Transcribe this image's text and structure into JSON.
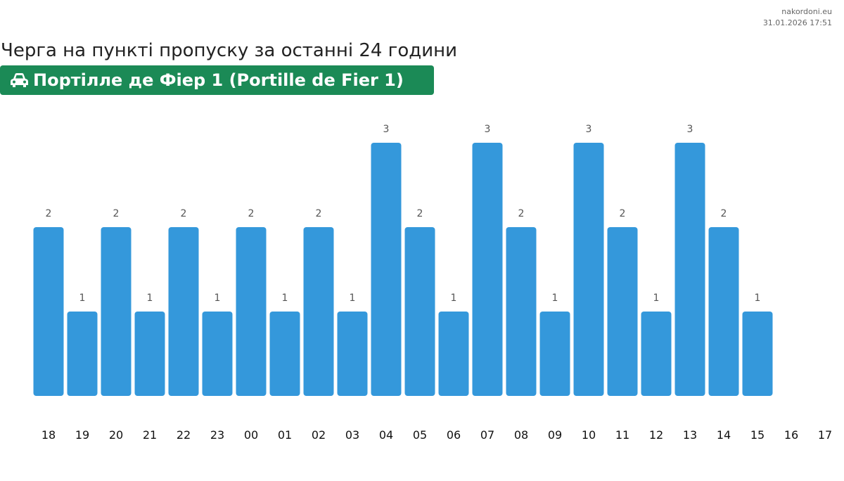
{
  "header": {
    "site": "nakordoni.eu",
    "timestamp": "31.01.2026 17:51",
    "title": "Черга на пункті пропуску за останні 24 години"
  },
  "badge": {
    "label": "Портілле де Фіер 1 (Portille de Fier 1)",
    "icon": "car-icon",
    "color": "#1b8a56"
  },
  "chart_data": {
    "type": "bar",
    "title": "Черга на пункті пропуску за останні 24 години",
    "xlabel": "",
    "ylabel": "",
    "categories": [
      "18",
      "19",
      "20",
      "21",
      "22",
      "23",
      "00",
      "01",
      "02",
      "03",
      "04",
      "05",
      "06",
      "07",
      "08",
      "09",
      "10",
      "11",
      "12",
      "13",
      "14",
      "15",
      "16",
      "17"
    ],
    "values": [
      2,
      1,
      2,
      1,
      2,
      1,
      2,
      1,
      2,
      1,
      3,
      2,
      1,
      3,
      2,
      1,
      3,
      2,
      1,
      3,
      2,
      1,
      null,
      null
    ],
    "ylim": [
      0,
      3
    ],
    "grid": false,
    "bar_color": "#3498db"
  }
}
